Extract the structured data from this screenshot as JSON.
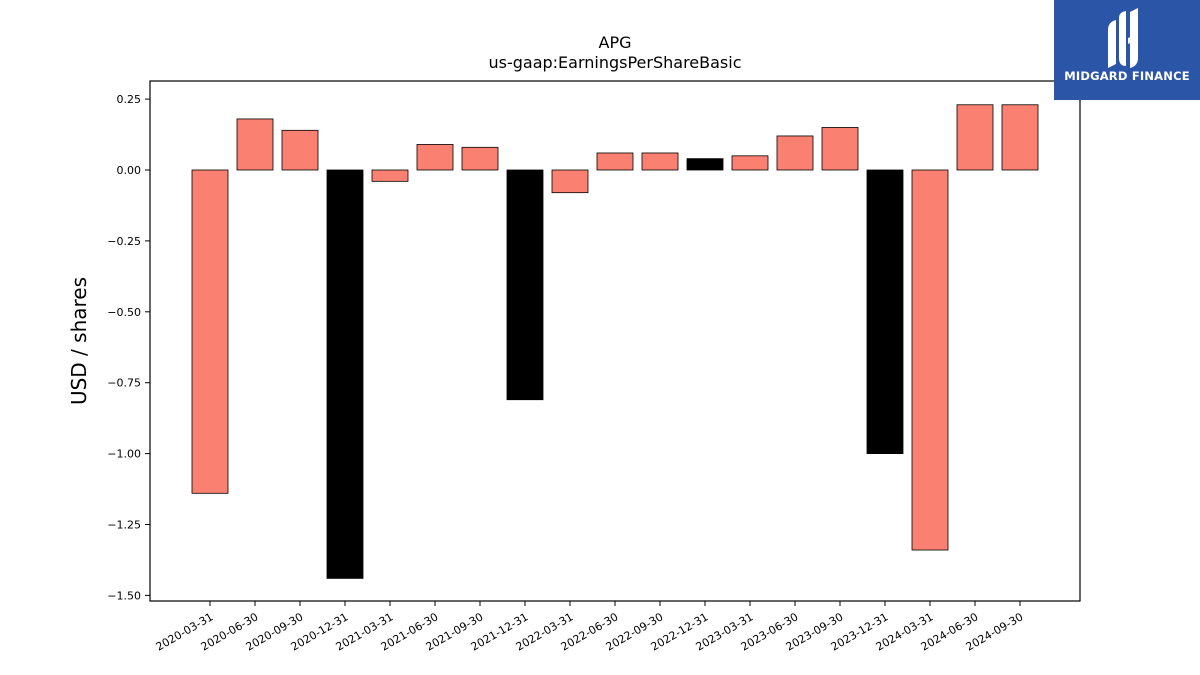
{
  "brand": {
    "name": "MIDGARD FINANCE",
    "color": "#2b56a8"
  },
  "chart_data": {
    "type": "bar",
    "title": "APG",
    "subtitle": "us-gaap:EarningsPerShareBasic",
    "xlabel": "",
    "ylabel": "USD / shares",
    "ylim": [
      -1.52,
      0.31
    ],
    "yticks": [
      0.25,
      0.0,
      -0.25,
      -0.5,
      -0.75,
      -1.0,
      -1.25,
      -1.5
    ],
    "ytick_labels": [
      "0.25",
      "0.00",
      "−0.25",
      "−0.50",
      "−0.75",
      "−1.00",
      "−1.25",
      "−1.50"
    ],
    "categories": [
      "2020-03-31",
      "2020-06-30",
      "2020-09-30",
      "2020-12-31",
      "2021-03-31",
      "2021-06-30",
      "2021-09-30",
      "2021-12-31",
      "2022-03-31",
      "2022-06-30",
      "2022-09-30",
      "2022-12-31",
      "2023-03-31",
      "2023-06-30",
      "2023-09-30",
      "2023-12-31",
      "2024-03-31",
      "2024-06-30",
      "2024-09-30"
    ],
    "values": [
      -1.14,
      0.18,
      0.14,
      -1.44,
      -0.04,
      0.09,
      0.08,
      -0.81,
      -0.08,
      0.06,
      0.06,
      0.04,
      0.05,
      0.12,
      0.15,
      -1.0,
      -1.34,
      0.23,
      0.23
    ],
    "bar_colors": [
      "#fa8072",
      "#fa8072",
      "#fa8072",
      "#000000",
      "#fa8072",
      "#fa8072",
      "#fa8072",
      "#000000",
      "#fa8072",
      "#fa8072",
      "#fa8072",
      "#000000",
      "#fa8072",
      "#fa8072",
      "#fa8072",
      "#000000",
      "#fa8072",
      "#fa8072",
      "#fa8072"
    ],
    "grid": false,
    "legend": "none"
  }
}
